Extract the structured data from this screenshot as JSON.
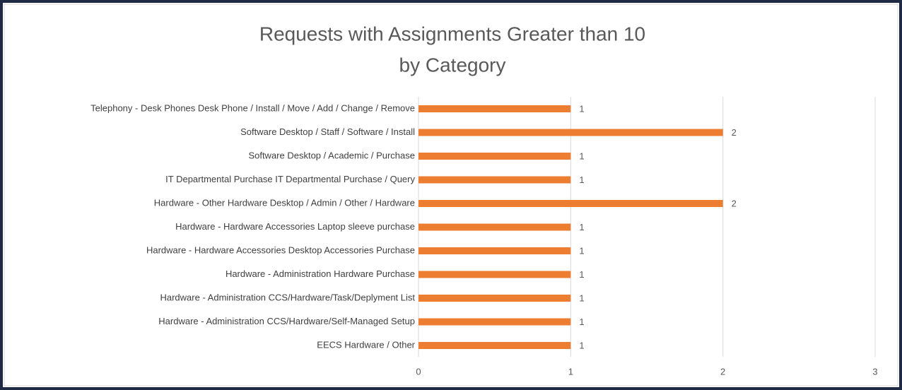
{
  "chart_data": {
    "type": "bar",
    "orientation": "horizontal",
    "title": [
      "Requests with Assignments Greater than 10",
      "by Category"
    ],
    "categories": [
      "Telephony - Desk Phones Desk Phone / Install / Move / Add / Change / Remove",
      "Software Desktop / Staff / Software / Install",
      "Software Desktop / Academic / Purchase",
      "IT Departmental Purchase IT Departmental Purchase / Query",
      "Hardware - Other Hardware Desktop / Admin / Other / Hardware",
      "Hardware - Hardware Accessories Laptop sleeve purchase",
      "Hardware - Hardware Accessories Desktop Accessories Purchase",
      "Hardware - Administration Hardware Purchase",
      "Hardware - Administration CCS/Hardware/Task/Deplyment List",
      "Hardware - Administration CCS/Hardware/Self-Managed Setup",
      "EECS Hardware / Other"
    ],
    "values": [
      1,
      2,
      1,
      1,
      2,
      1,
      1,
      1,
      1,
      1,
      1
    ],
    "color": "#ed7d31",
    "xlim": [
      0,
      3
    ],
    "xticks": [
      0,
      1,
      2,
      3
    ],
    "grid": true
  }
}
